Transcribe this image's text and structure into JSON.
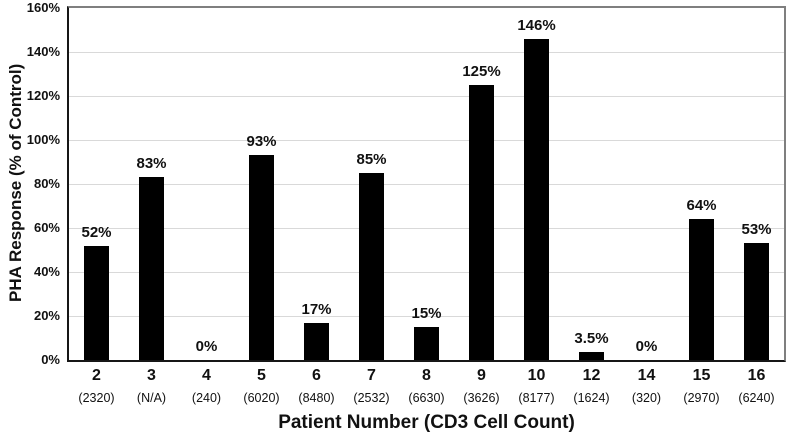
{
  "chart_data": {
    "type": "bar",
    "title": "",
    "xlabel": "Patient Number (CD3 Cell Count)",
    "ylabel": "PHA Response (% of Control)",
    "ylim": [
      0,
      160
    ],
    "ytick_step": 20,
    "ytick_labels": [
      "0%",
      "20%",
      "40%",
      "60%",
      "80%",
      "100%",
      "120%",
      "140%",
      "160%"
    ],
    "grid": true,
    "legend": "none",
    "bar_color": "#000000",
    "gridline_color": "#d9d9d9",
    "categories": [
      "2",
      "3",
      "4",
      "5",
      "6",
      "7",
      "8",
      "9",
      "10",
      "12",
      "14",
      "15",
      "16"
    ],
    "cd3_counts": [
      "(2320)",
      "(N/A)",
      "(240)",
      "(6020)",
      "(8480)",
      "(2532)",
      "(6630)",
      "(3626)",
      "(8177)",
      "(1624)",
      "(320)",
      "(2970)",
      "(6240)"
    ],
    "values": [
      52,
      83,
      0,
      93,
      17,
      85,
      15,
      125,
      146,
      3.5,
      0,
      64,
      53
    ],
    "value_labels": [
      "52%",
      "83%",
      "0%",
      "93%",
      "17%",
      "85%",
      "15%",
      "125%",
      "146%",
      "3.5%",
      "0%",
      "64%",
      "53%"
    ]
  }
}
